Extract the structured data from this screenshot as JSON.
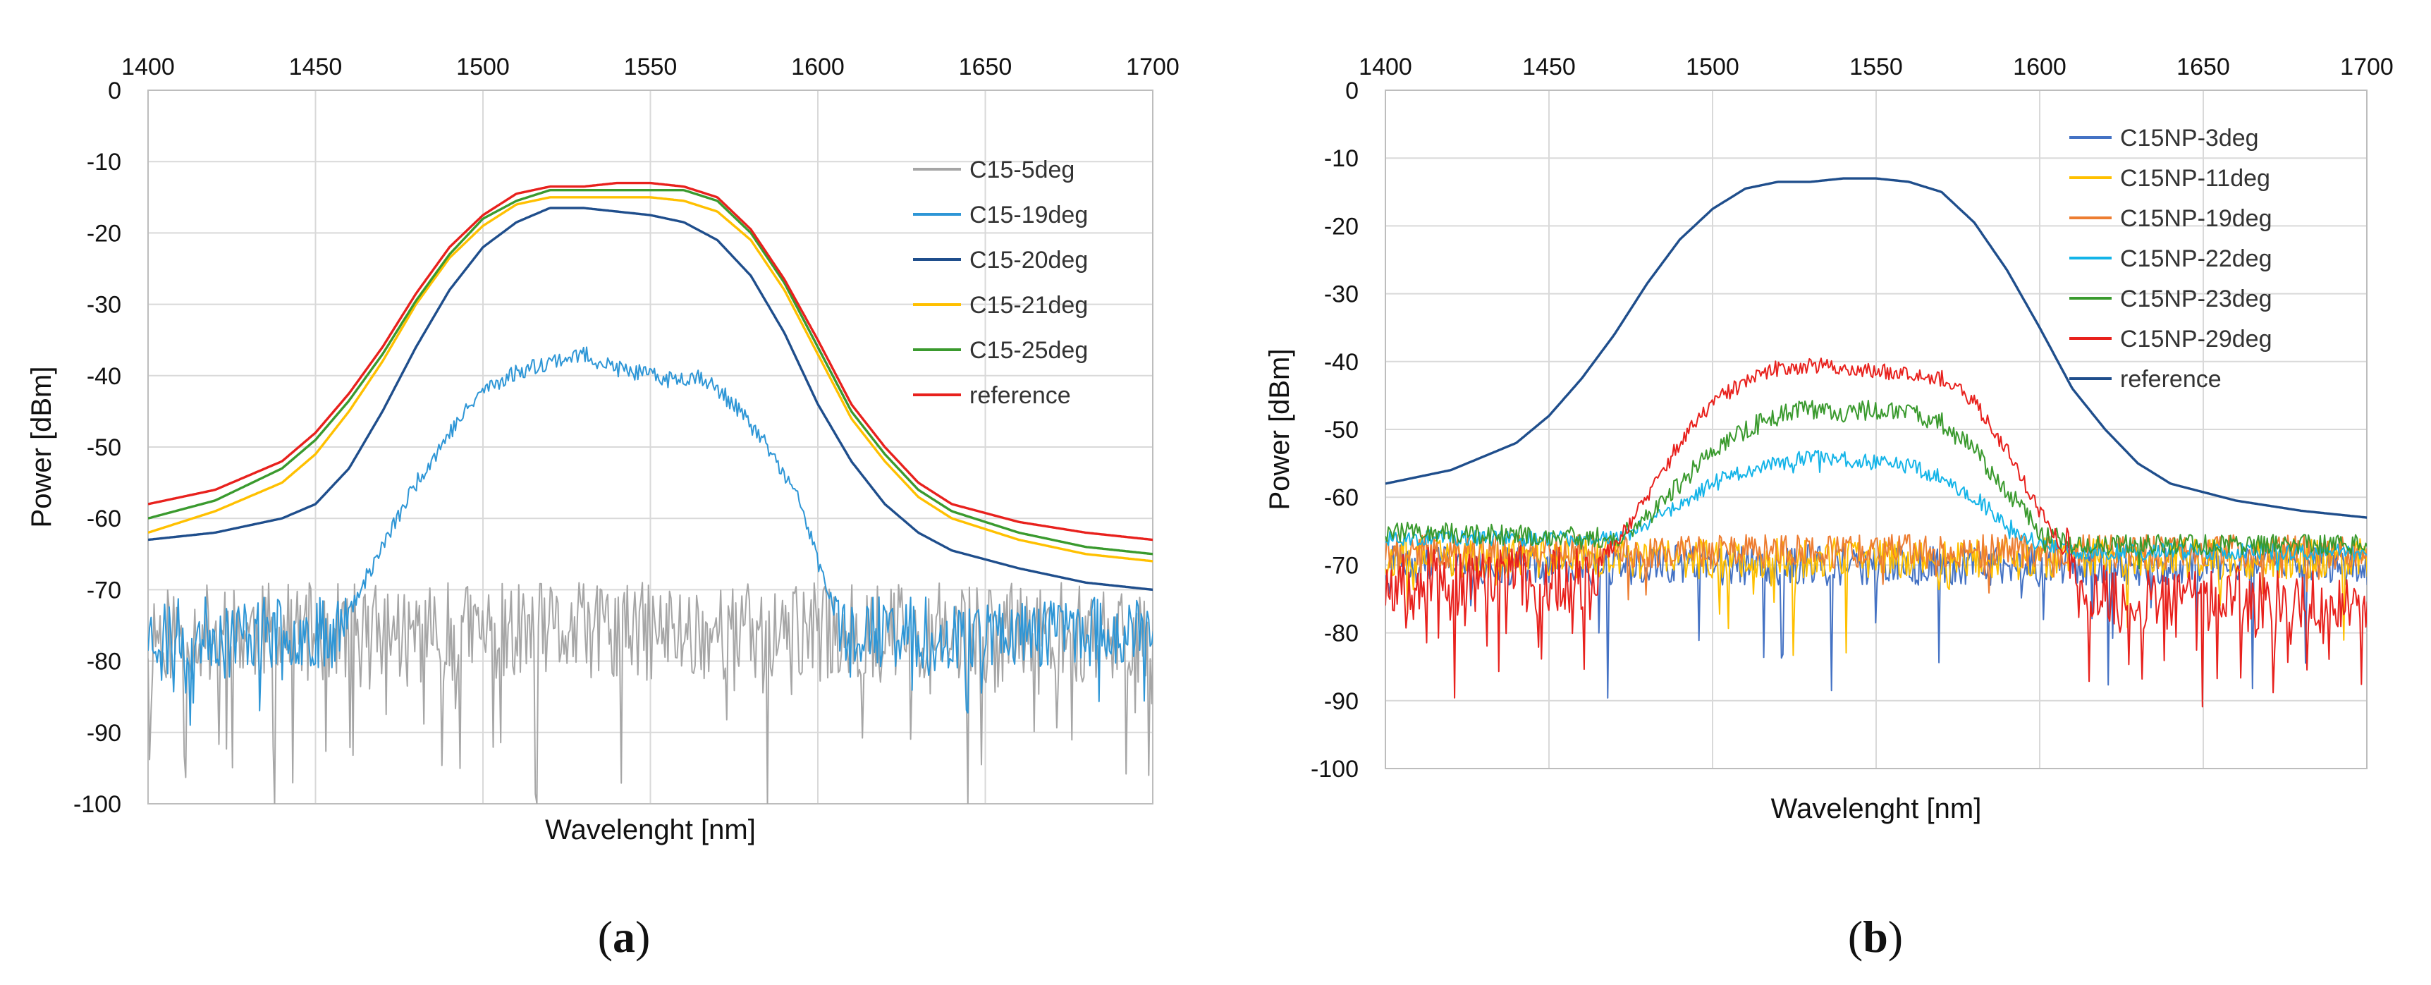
{
  "chart_data": [
    {
      "id": "a",
      "type": "line",
      "caption_letter": "a",
      "xlabel": "Wavelenght [nm]",
      "ylabel": "Power [dBm]",
      "xlim": [
        1400,
        1700
      ],
      "ylim": [
        -100,
        0
      ],
      "x_ticks": [
        1400,
        1450,
        1500,
        1550,
        1600,
        1650,
        1700
      ],
      "y_ticks": [
        0,
        -10,
        -20,
        -30,
        -40,
        -50,
        -60,
        -70,
        -80,
        -90,
        -100
      ],
      "legend_position": "top-right",
      "series": [
        {
          "name": "C15-5deg",
          "color": "#a6a6a6",
          "noisy": true,
          "noise_amp": 7,
          "spike_depth": 22,
          "spike_rate": 0.12,
          "seed": 11,
          "x": [
            1400,
            1700
          ],
          "y": [
            -76,
            -76
          ]
        },
        {
          "name": "C15-19deg",
          "color": "#2e96d6",
          "noisy": true,
          "noise_amp": 5,
          "spike_depth": 10,
          "spike_rate": 0.08,
          "seed": 23,
          "x": [
            1400,
            1455,
            1460,
            1470,
            1480,
            1490,
            1500,
            1510,
            1520,
            1530,
            1540,
            1545,
            1555,
            1565,
            1575,
            1585,
            1595,
            1600,
            1605,
            1610,
            1700
          ],
          "y": [
            -76,
            -76,
            -73,
            -64,
            -55,
            -48,
            -42,
            -39.5,
            -38,
            -37,
            -39,
            -39.5,
            -40.5,
            -40,
            -44,
            -50,
            -58,
            -66,
            -73,
            -76,
            -76
          ],
          "noise_x_ranges": [
            [
              1400,
              1460
            ],
            [
              1605,
              1700
            ]
          ]
        },
        {
          "name": "C15-20deg",
          "color": "#1f4e8c",
          "x": [
            1400,
            1420,
            1440,
            1450,
            1460,
            1470,
            1480,
            1490,
            1500,
            1510,
            1520,
            1530,
            1540,
            1550,
            1560,
            1570,
            1580,
            1590,
            1600,
            1610,
            1620,
            1630,
            1640,
            1660,
            1680,
            1700
          ],
          "y": [
            -63,
            -62,
            -60,
            -58,
            -53,
            -45,
            -36,
            -28,
            -22,
            -18.5,
            -16.5,
            -16.5,
            -17,
            -17.5,
            -18.5,
            -21,
            -26,
            -34,
            -44,
            -52,
            -58,
            -62,
            -64.5,
            -67,
            -69,
            -70
          ]
        },
        {
          "name": "C15-21deg",
          "color": "#ffc000",
          "x": [
            1400,
            1420,
            1440,
            1450,
            1460,
            1470,
            1480,
            1490,
            1500,
            1510,
            1520,
            1530,
            1540,
            1550,
            1560,
            1570,
            1580,
            1590,
            1600,
            1610,
            1620,
            1630,
            1640,
            1660,
            1680,
            1700
          ],
          "y": [
            -62,
            -59,
            -55,
            -51,
            -45,
            -38,
            -30,
            -23.5,
            -19,
            -16,
            -15,
            -15,
            -15,
            -15,
            -15.5,
            -17,
            -21,
            -28,
            -37,
            -46,
            -52,
            -57,
            -60,
            -63,
            -65,
            -66
          ]
        },
        {
          "name": "C15-25deg",
          "color": "#3a9a2e",
          "x": [
            1400,
            1420,
            1440,
            1450,
            1460,
            1470,
            1480,
            1490,
            1500,
            1510,
            1520,
            1530,
            1540,
            1550,
            1560,
            1570,
            1580,
            1590,
            1600,
            1610,
            1620,
            1630,
            1640,
            1660,
            1680,
            1700
          ],
          "y": [
            -60,
            -57.5,
            -53,
            -49,
            -43.5,
            -37,
            -29.5,
            -23,
            -18,
            -15.5,
            -14,
            -14,
            -14,
            -14,
            -14,
            -15.5,
            -20,
            -27,
            -36,
            -45,
            -51,
            -56,
            -59,
            -62,
            -64,
            -65
          ]
        },
        {
          "name": "reference",
          "color": "#e8211d",
          "x": [
            1400,
            1420,
            1440,
            1450,
            1460,
            1470,
            1480,
            1490,
            1500,
            1510,
            1520,
            1530,
            1540,
            1550,
            1560,
            1570,
            1580,
            1590,
            1600,
            1610,
            1620,
            1630,
            1640,
            1660,
            1680,
            1700
          ],
          "y": [
            -58,
            -56,
            -52,
            -48,
            -42.5,
            -36,
            -28.5,
            -22,
            -17.5,
            -14.5,
            -13.5,
            -13.5,
            -13,
            -13,
            -13.5,
            -15,
            -19.5,
            -26.5,
            -35,
            -44,
            -50,
            -55,
            -58,
            -60.5,
            -62,
            -63
          ]
        }
      ]
    },
    {
      "id": "b",
      "type": "line",
      "caption_letter": "b",
      "xlabel": "Wavelenght [nm]",
      "ylabel": "Power [dBm]",
      "xlim": [
        1400,
        1700
      ],
      "ylim": [
        -100,
        0
      ],
      "x_ticks": [
        1400,
        1450,
        1500,
        1550,
        1600,
        1650,
        1700
      ],
      "y_ticks": [
        0,
        -10,
        -20,
        -30,
        -40,
        -50,
        -60,
        -70,
        -80,
        -90,
        -100
      ],
      "legend_position": "top-right",
      "series": [
        {
          "name": "C15NP-3deg",
          "color": "#4472c4",
          "noisy": true,
          "noise_amp": 3,
          "spike_depth": 20,
          "spike_rate": 0.05,
          "seed": 31,
          "x": [
            1400,
            1700
          ],
          "y": [
            -70,
            -70
          ]
        },
        {
          "name": "C15NP-11deg",
          "color": "#ffc000",
          "noisy": true,
          "noise_amp": 3,
          "spike_depth": 12,
          "spike_rate": 0.04,
          "seed": 37,
          "x": [
            1400,
            1700
          ],
          "y": [
            -69,
            -69
          ]
        },
        {
          "name": "C15NP-19deg",
          "color": "#ed7d31",
          "noisy": true,
          "noise_amp": 2.5,
          "spike_depth": 6,
          "spike_rate": 0.03,
          "seed": 41,
          "x": [
            1400,
            1700
          ],
          "y": [
            -68,
            -68
          ]
        },
        {
          "name": "C15NP-22deg",
          "color": "#14b4e8",
          "noisy": true,
          "noise_amp": 1.2,
          "spike_depth": 3,
          "spike_rate": 0.02,
          "seed": 43,
          "x": [
            1400,
            1470,
            1480,
            1490,
            1500,
            1510,
            1520,
            1530,
            1540,
            1550,
            1560,
            1570,
            1580,
            1590,
            1600,
            1610,
            1700
          ],
          "y": [
            -66,
            -66,
            -64,
            -61,
            -58,
            -56,
            -55,
            -54,
            -54.5,
            -55,
            -55.5,
            -57,
            -60,
            -64,
            -67,
            -68,
            -68
          ]
        },
        {
          "name": "C15NP-23deg",
          "color": "#3a9a2e",
          "noisy": true,
          "noise_amp": 1.5,
          "spike_depth": 3,
          "spike_rate": 0.02,
          "seed": 47,
          "x": [
            1400,
            1470,
            1480,
            1490,
            1500,
            1510,
            1520,
            1530,
            1540,
            1550,
            1560,
            1570,
            1580,
            1590,
            1600,
            1610,
            1700
          ],
          "y": [
            -65,
            -66,
            -63,
            -58,
            -53,
            -50,
            -48,
            -47,
            -47.5,
            -47,
            -47.5,
            -49,
            -53,
            -59,
            -65,
            -67,
            -67
          ]
        },
        {
          "name": "C15NP-29deg",
          "color": "#e8211d",
          "noisy": true,
          "noise_amp": 5,
          "spike_depth": 14,
          "spike_rate": 0.18,
          "seed": 53,
          "x": [
            1400,
            1460,
            1470,
            1480,
            1490,
            1500,
            1510,
            1520,
            1530,
            1540,
            1550,
            1560,
            1570,
            1580,
            1590,
            1600,
            1610,
            1620,
            1700
          ],
          "y": [
            -72,
            -72,
            -67,
            -60,
            -52,
            -46,
            -43,
            -41,
            -40.5,
            -41,
            -41.5,
            -41.5,
            -42.5,
            -46,
            -53,
            -62,
            -70,
            -75,
            -75
          ],
          "noise_x_ranges": [
            [
              1400,
              1465
            ],
            [
              1608,
              1700
            ]
          ]
        },
        {
          "name": "reference",
          "color": "#1f4e8c",
          "x": [
            1400,
            1420,
            1440,
            1450,
            1460,
            1470,
            1480,
            1490,
            1500,
            1510,
            1520,
            1530,
            1540,
            1550,
            1560,
            1570,
            1580,
            1590,
            1600,
            1610,
            1620,
            1630,
            1640,
            1660,
            1680,
            1700
          ],
          "y": [
            -58,
            -56,
            -52,
            -48,
            -42.5,
            -36,
            -28.5,
            -22,
            -17.5,
            -14.5,
            -13.5,
            -13.5,
            -13,
            -13,
            -13.5,
            -15,
            -19.5,
            -26.5,
            -35,
            -44,
            -50,
            -55,
            -58,
            -60.5,
            -62,
            -63
          ]
        }
      ]
    }
  ]
}
